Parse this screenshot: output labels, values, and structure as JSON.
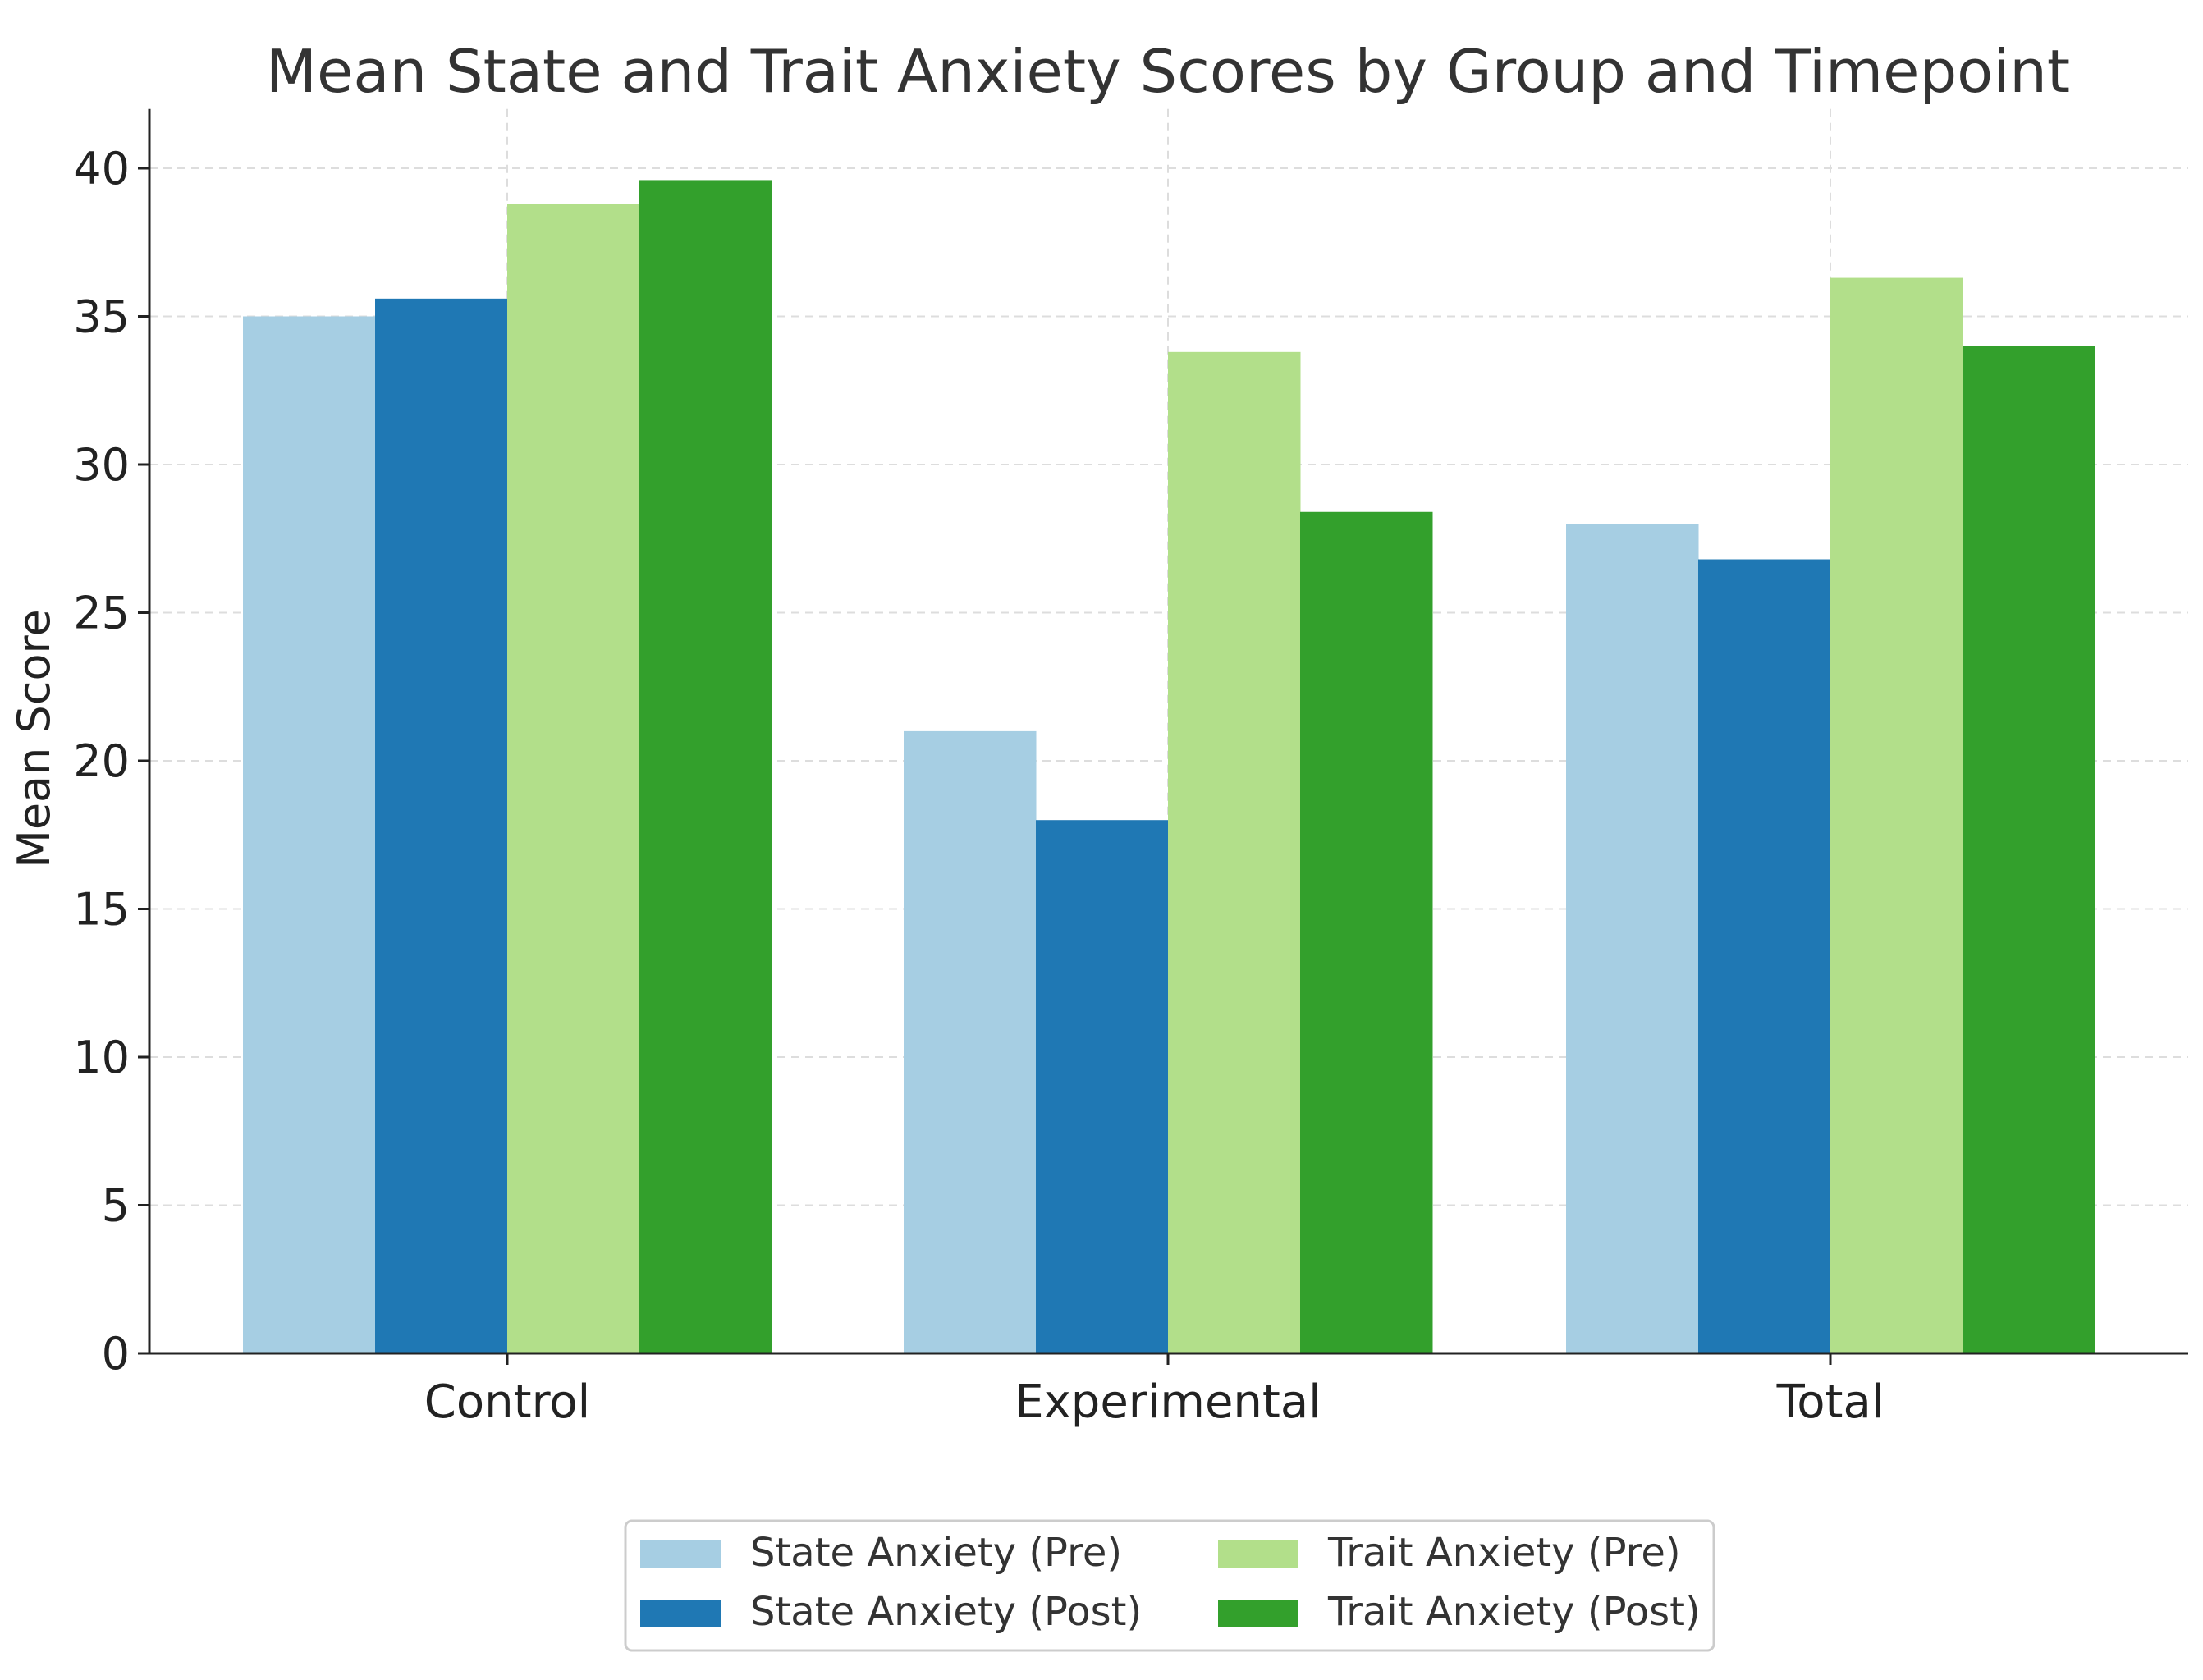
{
  "chart_data": {
    "type": "bar",
    "title": "Mean State and Trait Anxiety Scores by Group and Timepoint",
    "xlabel": "",
    "ylabel": "Mean Score",
    "ylim": [
      0,
      42
    ],
    "yticks": [
      0,
      5,
      10,
      15,
      20,
      25,
      30,
      35,
      40
    ],
    "grid": true,
    "legend_position": "bottom-center",
    "categories": [
      "Control",
      "Experimental",
      "Total"
    ],
    "series": [
      {
        "name": "State Anxiety (Pre)",
        "color": "#a6cee3",
        "values": [
          35.0,
          21.0,
          28.0
        ]
      },
      {
        "name": "State Anxiety (Post)",
        "color": "#1f78b4",
        "values": [
          35.6,
          18.0,
          26.8
        ]
      },
      {
        "name": "Trait Anxiety (Pre)",
        "color": "#b2df8a",
        "values": [
          38.8,
          33.8,
          36.3
        ]
      },
      {
        "name": "Trait Anxiety (Post)",
        "color": "#33a02c",
        "values": [
          39.6,
          28.4,
          34.0
        ]
      }
    ]
  }
}
